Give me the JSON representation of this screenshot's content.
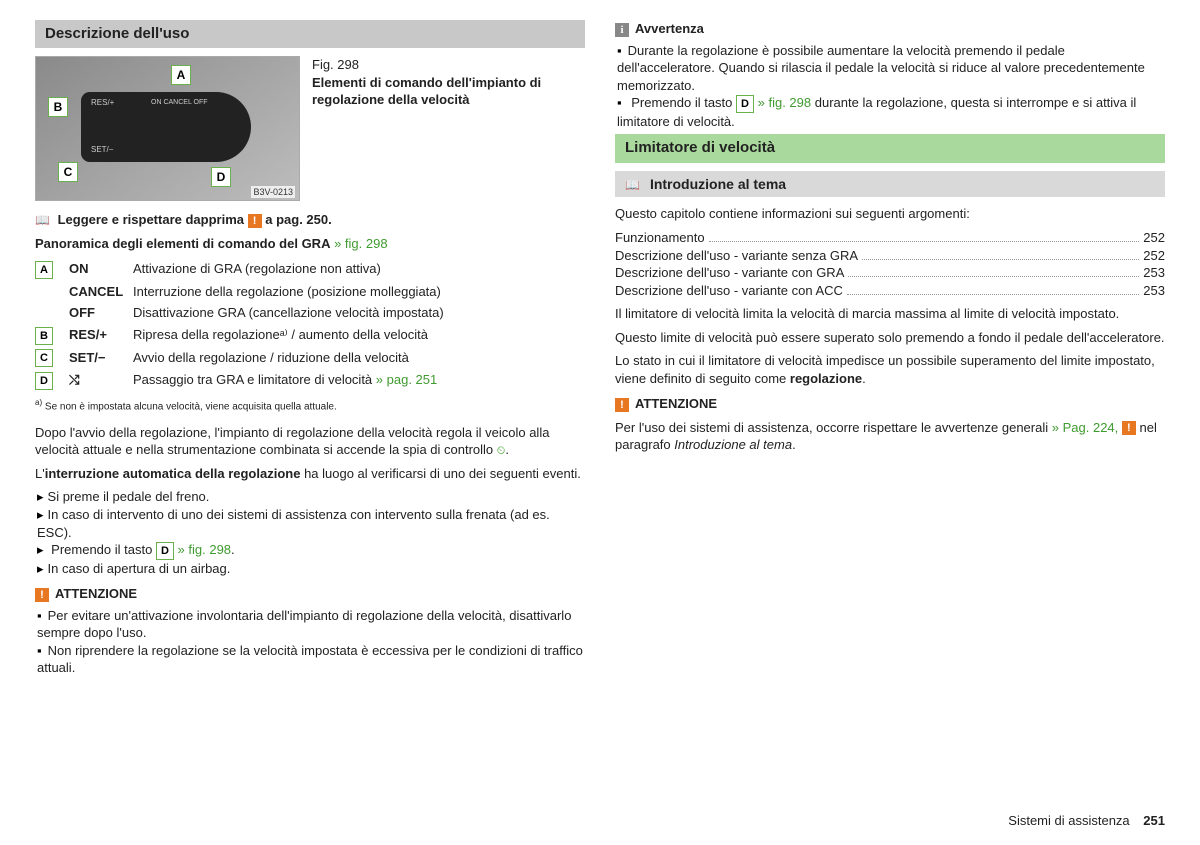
{
  "left": {
    "h1": "Descrizione dell'uso",
    "fig_num": "Fig. 298",
    "fig_title": "Elementi di comando dell'impianto di regolazione della velocità",
    "fig_code": "B3V-0213",
    "fig_labels": {
      "a": "A",
      "b": "B",
      "c": "C",
      "d": "D"
    },
    "read_first_pre": "Leggere e rispettare dapprima",
    "read_first_post": "a pag. 250.",
    "panoramica": "Panoramica degli elementi di comando del GRA",
    "fig_ref": "» fig. 298",
    "rows": [
      {
        "l": "A",
        "k": "ON",
        "t": "Attivazione di GRA (regolazione non attiva)"
      },
      {
        "l": "",
        "k": "CANCEL",
        "t": "Interruzione della regolazione (posizione molleggiata)"
      },
      {
        "l": "",
        "k": "OFF",
        "t": "Disattivazione GRA (cancellazione velocità impostata)"
      },
      {
        "l": "B",
        "k": "RES/+",
        "t": "Ripresa della regolazioneᵃ⁾ / aumento della velocità"
      },
      {
        "l": "C",
        "k": "SET/−",
        "t": "Avvio della regolazione / riduzione della velocità"
      },
      {
        "l": "D",
        "k": "⤭",
        "t": "Passaggio tra GRA e limitatore di velocità",
        "link": "» pag. 251"
      }
    ],
    "footnote": "Se non è impostata alcuna velocità, viene acquisita quella attuale.",
    "footnote_mark": "a)",
    "p1": "Dopo l'avvio della regolazione, l'impianto di regolazione della velocità regola il veicolo alla velocità attuale e nella strumentazione combinata si accende la spia di controllo",
    "p1_end": ".",
    "p2_a": "L'",
    "p2_b": "interruzione automatica della regolazione",
    "p2_c": " ha luogo al verificarsi di uno dei seguenti eventi.",
    "bullets": [
      "Si preme il pedale del freno.",
      "In caso di intervento di uno dei sistemi di assistenza con intervento sulla frenata (ad es. ESC)."
    ],
    "bullet3_pre": "Premendo il tasto ",
    "bullet3_box": "D",
    "bullet3_link": " » fig. 298",
    "bullet3_post": ".",
    "bullet4": "In caso di apertura di un airbag.",
    "warn_title": "ATTENZIONE",
    "warn_items": [
      "Per evitare un'attivazione involontaria dell'impianto di regolazione della velocità, disattivarlo sempre dopo l'uso.",
      "Non riprendere la regolazione se la velocità impostata è eccessiva per le condizioni di traffico attuali."
    ]
  },
  "right": {
    "info_title": "Avvertenza",
    "info1": "Durante la regolazione è possibile aumentare la velocità premendo il pedale dell'acceleratore. Quando si rilascia il pedale la velocità si riduce al valore precedentemente memorizzato.",
    "info2_pre": "Premendo il tasto ",
    "info2_box": "D",
    "info2_link": " » fig. 298",
    "info2_post": " durante la regolazione, questa si interrompe e si attiva il limitatore di velocità.",
    "h_green": "Limitatore di velocità",
    "h_gray": "Introduzione al tema",
    "intro": "Questo capitolo contiene informazioni sui seguenti argomenti:",
    "toc": [
      {
        "t": "Funzionamento",
        "p": "252"
      },
      {
        "t": "Descrizione dell'uso - variante senza GRA",
        "p": "252"
      },
      {
        "t": "Descrizione dell'uso - variante con GRA",
        "p": "253"
      },
      {
        "t": "Descrizione dell'uso - variante con ACC",
        "p": "253"
      }
    ],
    "p1": "Il limitatore di velocità limita la velocità di marcia massima al limite di velocità impostato.",
    "p2": "Questo limite di velocità può essere superato solo premendo a fondo il pedale dell'acceleratore.",
    "p3_a": "Lo stato in cui il limitatore di velocità impedisce un possibile superamento del limite impostato, viene definito di seguito come ",
    "p3_b": "regolazione",
    "p3_c": ".",
    "warn_title": "ATTENZIONE",
    "warn_text_a": "Per l'uso dei sistemi di assistenza, occorre rispettare le avvertenze generali",
    "warn_link": "» Pag. 224,",
    "warn_text_b": " nel paragrafo ",
    "warn_text_c": "Introduzione al tema",
    "warn_text_d": "."
  },
  "footer": {
    "section": "Sistemi di assistenza",
    "page": "251"
  }
}
